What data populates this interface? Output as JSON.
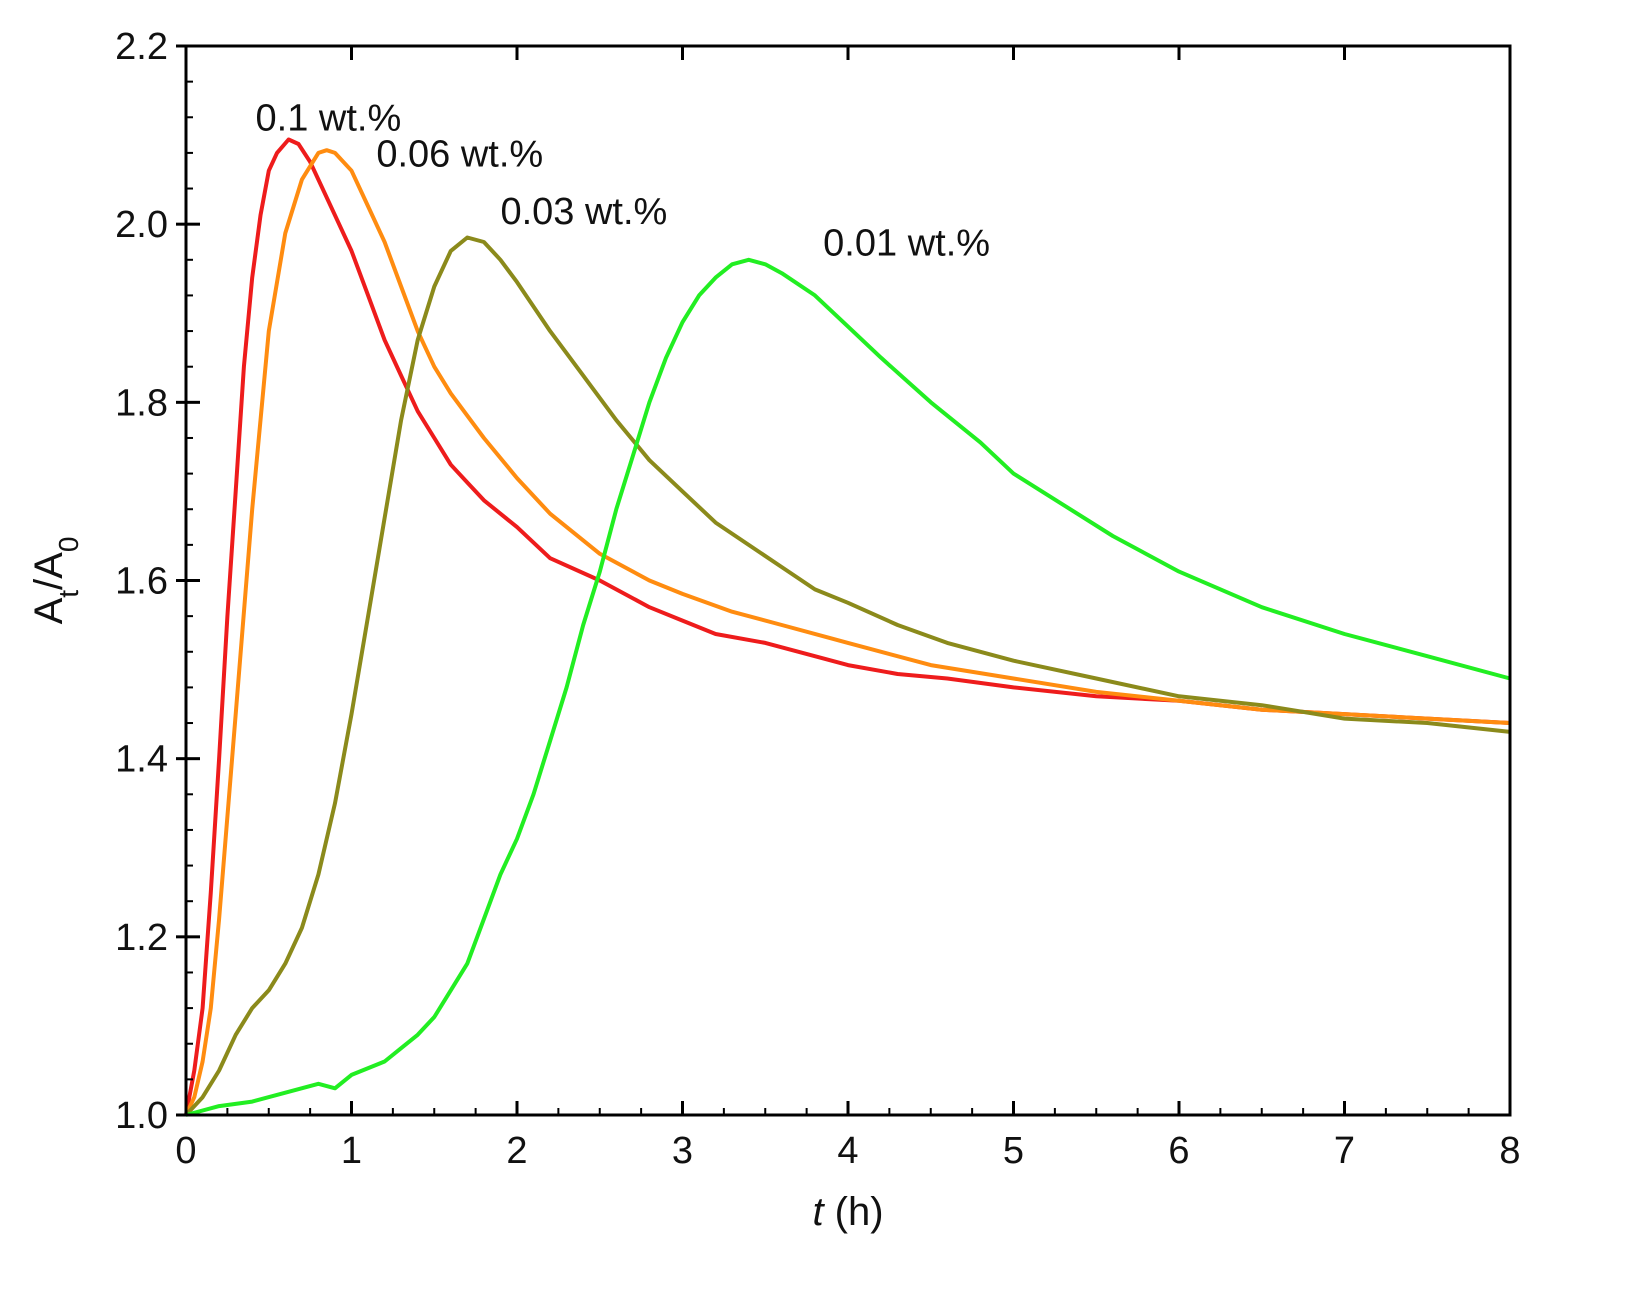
{
  "chart_data": {
    "type": "line",
    "title": "",
    "xlabel": {
      "var": "t",
      "unit": " (h)"
    },
    "ylabel": {
      "base": "A",
      "sub1": "t",
      "slash": "/A",
      "sub2": "0"
    },
    "xlim": [
      0,
      8
    ],
    "ylim": [
      1.0,
      2.2
    ],
    "xticks": [
      0,
      1,
      2,
      3,
      4,
      5,
      6,
      7,
      8
    ],
    "yticks": [
      1.0,
      1.2,
      1.4,
      1.6,
      1.8,
      2.0,
      2.2
    ],
    "xtick_labels": [
      "0",
      "1",
      "2",
      "3",
      "4",
      "5",
      "6",
      "7",
      "8"
    ],
    "ytick_labels": [
      "1.0",
      "1.2",
      "1.4",
      "1.6",
      "1.8",
      "2.0",
      "2.2"
    ],
    "grid": false,
    "series": [
      {
        "name": "0.1 wt.%",
        "color": "#ee1c1c",
        "label_at": [
          0.42,
          2.105
        ],
        "x": [
          0,
          0.05,
          0.1,
          0.15,
          0.2,
          0.25,
          0.3,
          0.35,
          0.4,
          0.45,
          0.5,
          0.55,
          0.62,
          0.68,
          0.75,
          0.8,
          0.9,
          1.0,
          1.1,
          1.2,
          1.3,
          1.4,
          1.5,
          1.6,
          1.7,
          1.8,
          2.0,
          2.2,
          2.5,
          2.8,
          3.0,
          3.2,
          3.5,
          3.8,
          4.0,
          4.3,
          4.6,
          5.0,
          5.5,
          6.0,
          6.5,
          7.0,
          7.5,
          8.0
        ],
        "values": [
          1.0,
          1.05,
          1.12,
          1.25,
          1.4,
          1.56,
          1.7,
          1.84,
          1.94,
          2.01,
          2.06,
          2.08,
          2.095,
          2.09,
          2.07,
          2.05,
          2.01,
          1.97,
          1.92,
          1.87,
          1.83,
          1.79,
          1.76,
          1.73,
          1.71,
          1.69,
          1.66,
          1.625,
          1.6,
          1.57,
          1.555,
          1.54,
          1.53,
          1.515,
          1.505,
          1.495,
          1.49,
          1.48,
          1.47,
          1.465,
          1.455,
          1.45,
          1.445,
          1.44
        ]
      },
      {
        "name": "0.06 wt.%",
        "color": "#ff8c10",
        "label_at": [
          1.15,
          2.065
        ],
        "x": [
          0,
          0.05,
          0.1,
          0.15,
          0.2,
          0.3,
          0.4,
          0.5,
          0.6,
          0.7,
          0.8,
          0.85,
          0.9,
          1.0,
          1.1,
          1.2,
          1.3,
          1.4,
          1.5,
          1.6,
          1.7,
          1.8,
          2.0,
          2.2,
          2.5,
          2.8,
          3.0,
          3.3,
          3.6,
          4.0,
          4.5,
          5.0,
          5.5,
          6.0,
          6.5,
          7.0,
          7.5,
          8.0
        ],
        "values": [
          1.0,
          1.02,
          1.06,
          1.12,
          1.22,
          1.45,
          1.68,
          1.88,
          1.99,
          2.05,
          2.08,
          2.083,
          2.08,
          2.06,
          2.02,
          1.98,
          1.93,
          1.88,
          1.84,
          1.81,
          1.785,
          1.76,
          1.715,
          1.675,
          1.63,
          1.6,
          1.585,
          1.565,
          1.55,
          1.53,
          1.505,
          1.49,
          1.475,
          1.465,
          1.455,
          1.45,
          1.445,
          1.44
        ]
      },
      {
        "name": "0.03 wt.%",
        "color": "#8b8a1b",
        "label_at": [
          1.9,
          2.0
        ],
        "x": [
          0,
          0.1,
          0.2,
          0.3,
          0.4,
          0.5,
          0.6,
          0.7,
          0.8,
          0.9,
          1.0,
          1.1,
          1.2,
          1.3,
          1.4,
          1.5,
          1.6,
          1.7,
          1.8,
          1.9,
          2.0,
          2.2,
          2.4,
          2.6,
          2.8,
          3.0,
          3.2,
          3.4,
          3.6,
          3.8,
          4.0,
          4.3,
          4.6,
          5.0,
          5.5,
          6.0,
          6.5,
          7.0,
          7.5,
          8.0
        ],
        "values": [
          1.0,
          1.02,
          1.05,
          1.09,
          1.12,
          1.14,
          1.17,
          1.21,
          1.27,
          1.35,
          1.45,
          1.56,
          1.67,
          1.78,
          1.87,
          1.93,
          1.97,
          1.985,
          1.98,
          1.96,
          1.935,
          1.88,
          1.83,
          1.78,
          1.735,
          1.7,
          1.665,
          1.64,
          1.615,
          1.59,
          1.575,
          1.55,
          1.53,
          1.51,
          1.49,
          1.47,
          1.46,
          1.445,
          1.44,
          1.43
        ]
      },
      {
        "name": "0.01 wt.%",
        "color": "#22ee22",
        "label_at": [
          3.85,
          1.965
        ],
        "x": [
          0,
          0.2,
          0.4,
          0.6,
          0.8,
          0.9,
          1.0,
          1.2,
          1.3,
          1.4,
          1.5,
          1.6,
          1.7,
          1.8,
          1.9,
          2.0,
          2.1,
          2.2,
          2.3,
          2.4,
          2.5,
          2.6,
          2.7,
          2.8,
          2.9,
          3.0,
          3.1,
          3.2,
          3.3,
          3.4,
          3.5,
          3.6,
          3.8,
          4.0,
          4.2,
          4.5,
          4.8,
          5.0,
          5.3,
          5.6,
          6.0,
          6.5,
          7.0,
          7.5,
          8.0
        ],
        "values": [
          1.0,
          1.01,
          1.015,
          1.025,
          1.035,
          1.03,
          1.045,
          1.06,
          1.075,
          1.09,
          1.11,
          1.14,
          1.17,
          1.22,
          1.27,
          1.31,
          1.36,
          1.42,
          1.48,
          1.55,
          1.61,
          1.68,
          1.74,
          1.8,
          1.85,
          1.89,
          1.92,
          1.94,
          1.955,
          1.96,
          1.955,
          1.945,
          1.92,
          1.885,
          1.85,
          1.8,
          1.755,
          1.72,
          1.685,
          1.65,
          1.61,
          1.57,
          1.54,
          1.515,
          1.49
        ]
      }
    ]
  }
}
